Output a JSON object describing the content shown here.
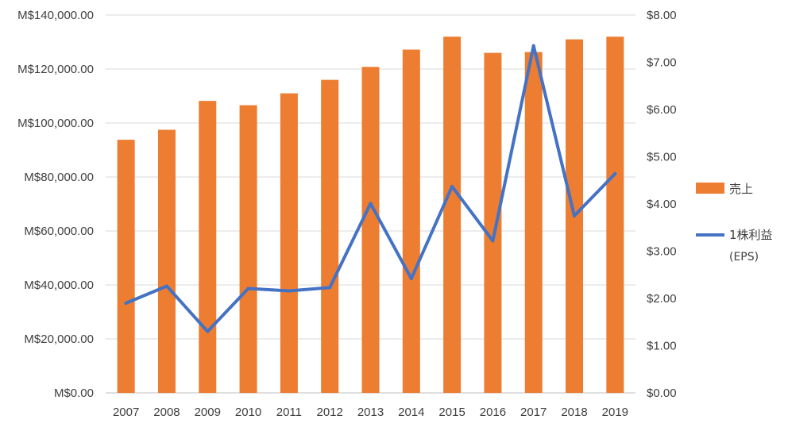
{
  "colors": {
    "bar": "#ed7d31",
    "line": "#4472c4",
    "grid": "#d9d9d9",
    "text": "#404040"
  },
  "chart_data": {
    "type": "bar",
    "combo": "bar + line (secondary y-axis)",
    "categories": [
      "2007",
      "2008",
      "2009",
      "2010",
      "2011",
      "2012",
      "2013",
      "2014",
      "2015",
      "2016",
      "2017",
      "2018",
      "2019"
    ],
    "series": [
      {
        "name": "売上",
        "type": "bar",
        "axis": "primary",
        "values": [
          93800,
          97500,
          108200,
          106600,
          111000,
          116000,
          120800,
          127200,
          132000,
          126000,
          126300,
          131000,
          132000
        ]
      },
      {
        "name": "1株利益 (EPS)",
        "name_lines": [
          "1株利益",
          "(EPS)"
        ],
        "type": "line",
        "axis": "secondary",
        "values": [
          1.9,
          2.26,
          1.3,
          2.21,
          2.16,
          2.23,
          4.01,
          2.42,
          4.37,
          3.22,
          7.35,
          3.75,
          4.64
        ]
      }
    ],
    "y_left": {
      "min": 0,
      "max": 140000,
      "step": 20000,
      "tick_labels": [
        "M$0.00",
        "M$20,000.00",
        "M$40,000.00",
        "M$60,000.00",
        "M$80,000.00",
        "M$100,000.00",
        "M$120,000.00",
        "M$140,000.00"
      ]
    },
    "y_right": {
      "min": 0,
      "max": 8,
      "step": 1,
      "tick_labels": [
        "$0.00",
        "$1.00",
        "$2.00",
        "$3.00",
        "$4.00",
        "$5.00",
        "$6.00",
        "$7.00",
        "$8.00"
      ]
    },
    "grid": true,
    "legend_position": "right"
  }
}
